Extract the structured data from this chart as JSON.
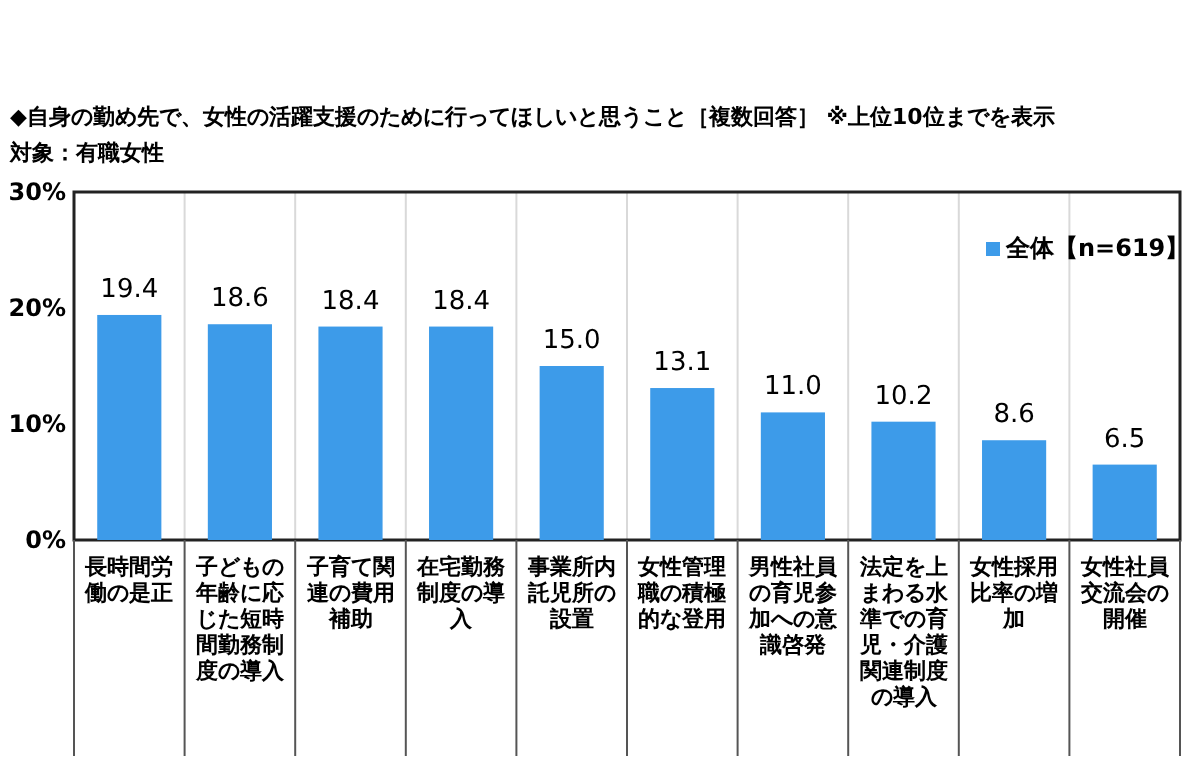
{
  "chart_data": {
    "type": "bar",
    "title": "◆自身の勤め先で、女性の活躍支援のために行ってほしいと思うこと［複数回答］ ※上位10位までを表示",
    "subtitle": "対象：有職女性",
    "categories": [
      "長時間労働の是正",
      "子どもの年齢に応じた短時間勤務制度の導入",
      "子育て関連の費用補助",
      "在宅勤務制度の導入",
      "事業所内託児所の設置",
      "女性管理職の積極的な登用",
      "男性社員の育児参加への意識啓発",
      "法定を上まわる水準での育児・介護関連制度の導入",
      "女性採用比率の増加",
      "女性社員交流会の開催"
    ],
    "series": [
      {
        "name": "全体【n=619】",
        "color": "#3d9be9",
        "values": [
          19.4,
          18.6,
          18.4,
          18.4,
          15.0,
          13.1,
          11.0,
          10.2,
          8.6,
          6.5
        ],
        "value_labels": [
          "19.4",
          "18.6",
          "18.4",
          "18.4",
          "15.0",
          "13.1",
          "11.0",
          "10.2",
          "8.6",
          "6.5"
        ]
      }
    ],
    "ylim": [
      0,
      30
    ],
    "yticks": [
      {
        "value": 0,
        "label": "0%"
      },
      {
        "value": 10,
        "label": "10%"
      },
      {
        "value": 20,
        "label": "20%"
      },
      {
        "value": 30,
        "label": "30%"
      }
    ],
    "grid": "x",
    "legend": "top right"
  }
}
